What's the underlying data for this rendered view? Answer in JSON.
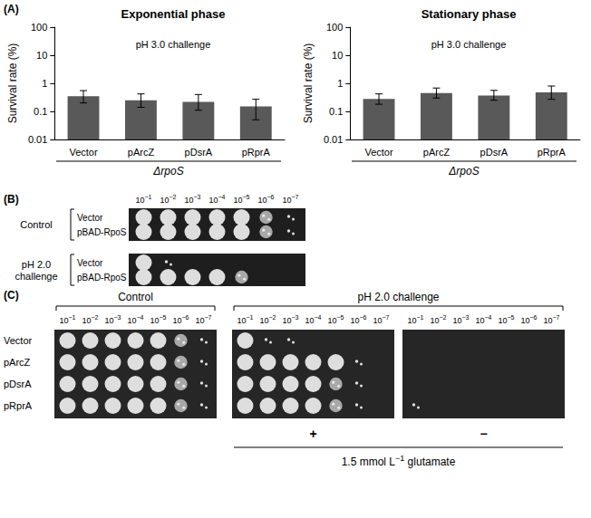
{
  "chart_data": [
    {
      "type": "bar",
      "title": "Exponential phase",
      "subtitle": "pH 3.0 challenge",
      "ylabel": "Survival rate (%)",
      "categories": [
        "Vector",
        "pArcZ",
        "pDsrA",
        "pRprA"
      ],
      "values": [
        0.35,
        0.25,
        0.22,
        0.15
      ],
      "error_low": [
        0.2,
        0.14,
        0.11,
        0.05
      ],
      "error_high": [
        0.55,
        0.42,
        0.4,
        0.27
      ],
      "group_label": "ΔrpoS",
      "color": "#595959",
      "log": "y",
      "ylim": [
        0.01,
        100
      ],
      "yticks": [
        0.01,
        0.1,
        1,
        10,
        100
      ],
      "grid": false
    },
    {
      "type": "bar",
      "title": "Stationary phase",
      "subtitle": "pH 3.0 challenge",
      "ylabel": "Survival rate (%)",
      "categories": [
        "Vector",
        "pArcZ",
        "pDsrA",
        "pRprA"
      ],
      "values": [
        0.28,
        0.45,
        0.37,
        0.48
      ],
      "error_low": [
        0.18,
        0.3,
        0.25,
        0.27
      ],
      "error_high": [
        0.42,
        0.68,
        0.56,
        0.8
      ],
      "group_label": "ΔrpoS",
      "color": "#595959",
      "log": "y",
      "ylim": [
        0.01,
        100
      ],
      "yticks": [
        0.01,
        0.1,
        1,
        10,
        100
      ],
      "grid": false
    }
  ],
  "panel_a": {
    "label": "(A)"
  },
  "panel_b": {
    "label": "(B)",
    "dilutions": [
      {
        "base": "10",
        "exponent": "−1"
      },
      {
        "base": "10",
        "exponent": "−2"
      },
      {
        "base": "10",
        "exponent": "−3"
      },
      {
        "base": "10",
        "exponent": "−4"
      },
      {
        "base": "10",
        "exponent": "−5"
      },
      {
        "base": "10",
        "exponent": "−6"
      },
      {
        "base": "10",
        "exponent": "−7"
      }
    ],
    "groups": [
      {
        "name": [
          "Control"
        ],
        "rows": [
          {
            "name": "Vector",
            "spots": [
              3,
              3,
              3,
              3,
              3,
              2,
              1
            ]
          },
          {
            "name": "pBAD-RpoS",
            "spots": [
              3,
              3,
              3,
              3,
              3,
              2,
              1
            ]
          }
        ]
      },
      {
        "name": [
          "pH 2.0",
          "challenge"
        ],
        "rows": [
          {
            "name": "Vector",
            "spots": [
              3,
              1,
              0,
              0,
              0,
              0,
              0
            ]
          },
          {
            "name": "pBAD-RpoS",
            "spots": [
              3,
              3,
              3,
              3,
              2,
              0,
              0
            ]
          }
        ]
      }
    ]
  },
  "panel_c": {
    "label": "(C)",
    "dilutions": [
      {
        "base": "10",
        "exponent": "−1"
      },
      {
        "base": "10",
        "exponent": "−2"
      },
      {
        "base": "10",
        "exponent": "−3"
      },
      {
        "base": "10",
        "exponent": "−4"
      },
      {
        "base": "10",
        "exponent": "−5"
      },
      {
        "base": "10",
        "exponent": "−6"
      },
      {
        "base": "10",
        "exponent": "−7"
      }
    ],
    "row_names": [
      "Vector",
      "pArcZ",
      "pDsrA",
      "pRprA"
    ],
    "groups": [
      {
        "title": "Control",
        "plates": [
          {
            "spots": [
              [
                3,
                3,
                3,
                3,
                3,
                2,
                1
              ],
              [
                3,
                3,
                3,
                3,
                3,
                2,
                1
              ],
              [
                3,
                3,
                3,
                3,
                3,
                2,
                1
              ],
              [
                3,
                3,
                3,
                3,
                3,
                2,
                1
              ]
            ]
          }
        ]
      },
      {
        "title": "pH 2.0 challenge",
        "plates": [
          {
            "condition": "+",
            "spots": [
              [
                3,
                1,
                1,
                0,
                0,
                0,
                0
              ],
              [
                3,
                3,
                3,
                3,
                3,
                1,
                0
              ],
              [
                3,
                3,
                3,
                3,
                2,
                1,
                0
              ],
              [
                3,
                3,
                3,
                3,
                2,
                1,
                0
              ]
            ]
          },
          {
            "condition": "−",
            "spots": [
              [
                0,
                0,
                0,
                0,
                0,
                0,
                0
              ],
              [
                0,
                0,
                0,
                0,
                0,
                0,
                0
              ],
              [
                0,
                0,
                0,
                0,
                0,
                0,
                0
              ],
              [
                1,
                0,
                0,
                0,
                0,
                0,
                0
              ]
            ]
          }
        ]
      }
    ],
    "condition_label": {
      "before": "1.5 mmol L",
      "superscript": "−1",
      "after": " glutamate"
    }
  }
}
